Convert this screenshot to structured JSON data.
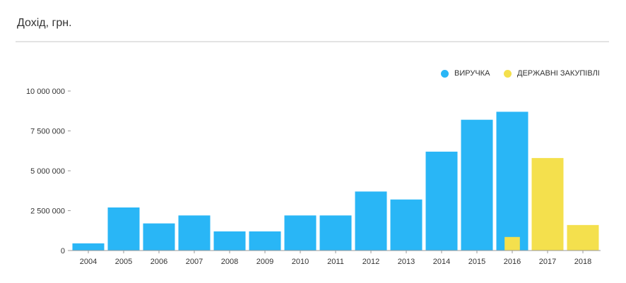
{
  "header": {
    "title": "Дохід, грн."
  },
  "legend": [
    {
      "label": "ВИРУЧКА",
      "color": "#29b6f6"
    },
    {
      "label": "ДЕРЖАВНІ ЗАКУПІВЛІ",
      "color": "#f4e04d"
    }
  ],
  "chart_data": {
    "type": "bar",
    "title": "Дохід, грн.",
    "categories": [
      "2004",
      "2005",
      "2006",
      "2007",
      "2008",
      "2009",
      "2010",
      "2011",
      "2012",
      "2013",
      "2014",
      "2015",
      "2016",
      "2017",
      "2018"
    ],
    "series": [
      {
        "name": "ВИРУЧКА",
        "color": "#29b6f6",
        "values": [
          450000,
          2700000,
          1700000,
          2200000,
          1200000,
          1200000,
          2200000,
          2200000,
          3700000,
          3200000,
          6200000,
          8200000,
          8700000,
          null,
          null
        ]
      },
      {
        "name": "ДЕРЖАВНІ ЗАКУПІВЛІ",
        "color": "#f4e04d",
        "values": [
          null,
          null,
          null,
          null,
          null,
          null,
          null,
          null,
          null,
          null,
          null,
          null,
          850000,
          5800000,
          1600000
        ]
      }
    ],
    "ylim": [
      0,
      10000000
    ],
    "yticks": [
      0,
      2500000,
      5000000,
      7500000,
      10000000
    ],
    "ytick_labels": [
      "0",
      "2 500 000",
      "5 000 000",
      "7 500 000",
      "10 000 000"
    ],
    "grid": false,
    "legend_position": "top-right",
    "xlabel": "",
    "ylabel": ""
  }
}
